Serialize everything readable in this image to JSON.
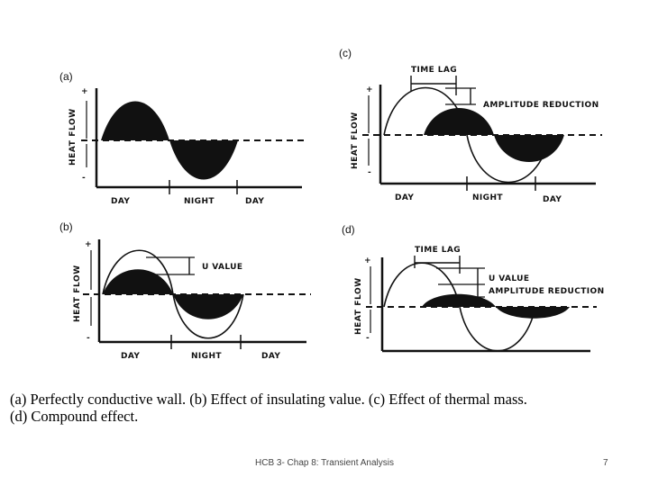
{
  "panels": {
    "a": {
      "label": "(a)",
      "axis": "HEAT FLOW",
      "plus": "+",
      "minus": "-",
      "x_labels": [
        "DAY",
        "NIGHT",
        "DAY"
      ]
    },
    "b": {
      "label": "(b)",
      "axis": "HEAT FLOW",
      "plus": "+",
      "minus": "-",
      "annotation": "U VALUE",
      "x_labels": [
        "DAY",
        "NIGHT",
        "DAY"
      ]
    },
    "c": {
      "label": "(c)",
      "axis": "HEAT FLOW",
      "plus": "+",
      "minus": "-",
      "time_lag": "TIME LAG",
      "annotation": "AMPLITUDE REDUCTION",
      "x_labels": [
        "DAY",
        "NIGHT",
        "DAY"
      ]
    },
    "d": {
      "label": "(d)",
      "axis": "HEAT FLOW",
      "plus": "+",
      "minus": "-",
      "time_lag": "TIME LAG",
      "annotation_1": "U VALUE",
      "annotation_2": "AMPLITUDE REDUCTION"
    }
  },
  "caption": {
    "line1": "(a) Perfectly conductive wall. (b) Effect of insulating value. (c) Effect of thermal mass.",
    "line2": "(d) Compound effect."
  },
  "footer": {
    "title": "HCB 3- Chap 8: Transient Analysis",
    "page": "7"
  }
}
